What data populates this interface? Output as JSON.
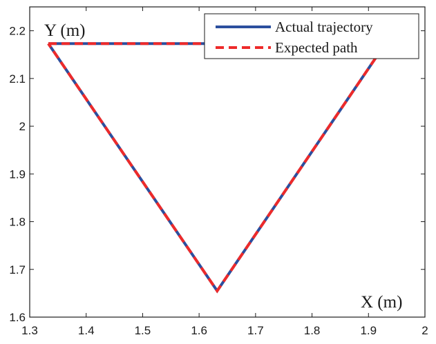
{
  "chart_data": {
    "type": "line",
    "xlabel": "X (m)",
    "ylabel": "Y (m)",
    "xlim": [
      1.3,
      2.0
    ],
    "ylim": [
      1.6,
      2.25
    ],
    "xticks": [
      "1.3",
      "1.4",
      "1.5",
      "1.6",
      "1.7",
      "1.8",
      "1.9",
      "2"
    ],
    "yticks": [
      "1.6",
      "1.7",
      "1.8",
      "1.9",
      "2",
      "2.1",
      "2.2"
    ],
    "grid": false,
    "legend_position": "top-right",
    "series": [
      {
        "name": "Actual trajectory",
        "color": "#2c4f9e",
        "style": "solid",
        "x": [
          1.333,
          1.93,
          1.632,
          1.333
        ],
        "y": [
          2.173,
          2.173,
          1.655,
          2.173
        ]
      },
      {
        "name": "Expected path",
        "color": "#ee2a2a",
        "style": "dashed",
        "x": [
          1.333,
          1.93,
          1.632,
          1.333
        ],
        "y": [
          2.173,
          2.173,
          1.655,
          2.173
        ]
      }
    ]
  }
}
